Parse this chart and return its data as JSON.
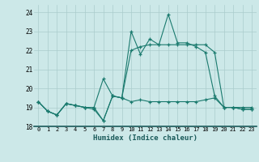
{
  "title": "",
  "xlabel": "Humidex (Indice chaleur)",
  "ylabel": "",
  "bg_color": "#cce8e8",
  "grid_color": "#aacccc",
  "line_color": "#1a7a6e",
  "xlim": [
    -0.5,
    23.5
  ],
  "ylim": [
    18.0,
    24.4
  ],
  "yticks": [
    18,
    19,
    20,
    21,
    22,
    23,
    24
  ],
  "xticks": [
    0,
    1,
    2,
    3,
    4,
    5,
    6,
    7,
    8,
    9,
    10,
    11,
    12,
    13,
    14,
    15,
    16,
    17,
    18,
    19,
    20,
    21,
    22,
    23
  ],
  "series": [
    [
      19.3,
      18.8,
      18.6,
      19.2,
      19.1,
      19.0,
      18.9,
      18.3,
      19.6,
      19.5,
      19.3,
      19.4,
      19.3,
      19.3,
      19.3,
      19.3,
      19.3,
      19.3,
      19.4,
      19.5,
      19.0,
      19.0,
      19.0,
      19.0
    ],
    [
      19.3,
      18.8,
      18.6,
      19.2,
      19.1,
      19.0,
      19.0,
      18.3,
      19.6,
      19.5,
      23.0,
      21.8,
      22.6,
      22.3,
      23.9,
      22.4,
      22.4,
      22.2,
      21.9,
      19.6,
      19.0,
      19.0,
      18.9,
      18.9
    ],
    [
      19.3,
      18.8,
      18.6,
      19.2,
      19.1,
      19.0,
      19.0,
      20.5,
      19.6,
      19.5,
      22.0,
      22.2,
      22.3,
      22.3,
      22.3,
      22.3,
      22.3,
      22.3,
      22.3,
      21.9,
      19.0,
      19.0,
      18.9,
      18.9
    ]
  ]
}
